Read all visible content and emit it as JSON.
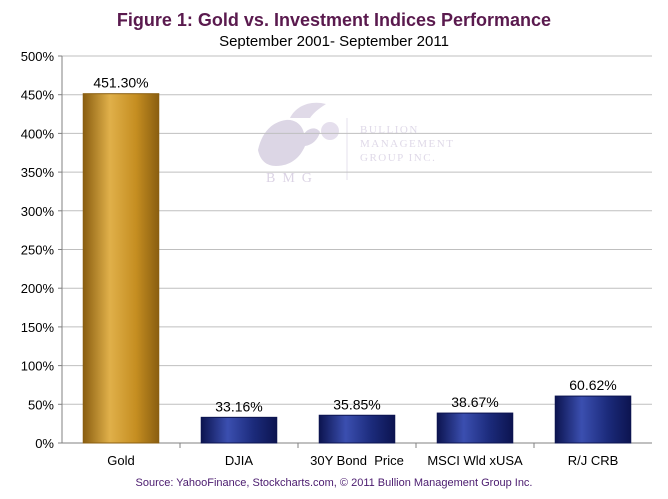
{
  "chart_data": {
    "type": "bar",
    "title": "Figure 1: Gold vs. Investment Indices Performance",
    "subtitle": "September 2001- September 2011",
    "categories": [
      "Gold",
      "DJIA",
      "30Y Bond  Price",
      "MSCI Wld xUSA",
      "R/J CRB"
    ],
    "values": [
      451.3,
      33.16,
      35.85,
      38.67,
      60.62
    ],
    "data_labels": [
      "451.30%",
      "33.16%",
      "35.85%",
      "38.67%",
      "60.62%"
    ],
    "y_ticks": [
      "0%",
      "50%",
      "100%",
      "150%",
      "200%",
      "250%",
      "300%",
      "350%",
      "400%",
      "450%",
      "500%"
    ],
    "ylim": [
      0,
      500
    ],
    "y_step": 50,
    "grid": true,
    "legend": "none",
    "xlabel": "",
    "ylabel": ""
  },
  "colors": {
    "title": "#5a1a4e",
    "source": "#4a1a6e",
    "gold_bar": "#c58e21",
    "gold_bar_light": "#e0b04a",
    "gold_bar_dark": "#8a5e10",
    "index_bar": "#1b2a7a",
    "index_bar_light": "#3b4fb0",
    "index_bar_dark": "#0c1450",
    "grid": "#bfbfbf",
    "watermark": "#cfc8dc"
  },
  "source_text": "Source: YahooFinance, Stockcharts.com, © 2011 Bullion Management Group Inc.",
  "watermark": {
    "logo_letters": "BMG",
    "company_line1": "BULLION",
    "company_line2": "MANAGEMENT",
    "company_line3": "GROUP INC."
  }
}
